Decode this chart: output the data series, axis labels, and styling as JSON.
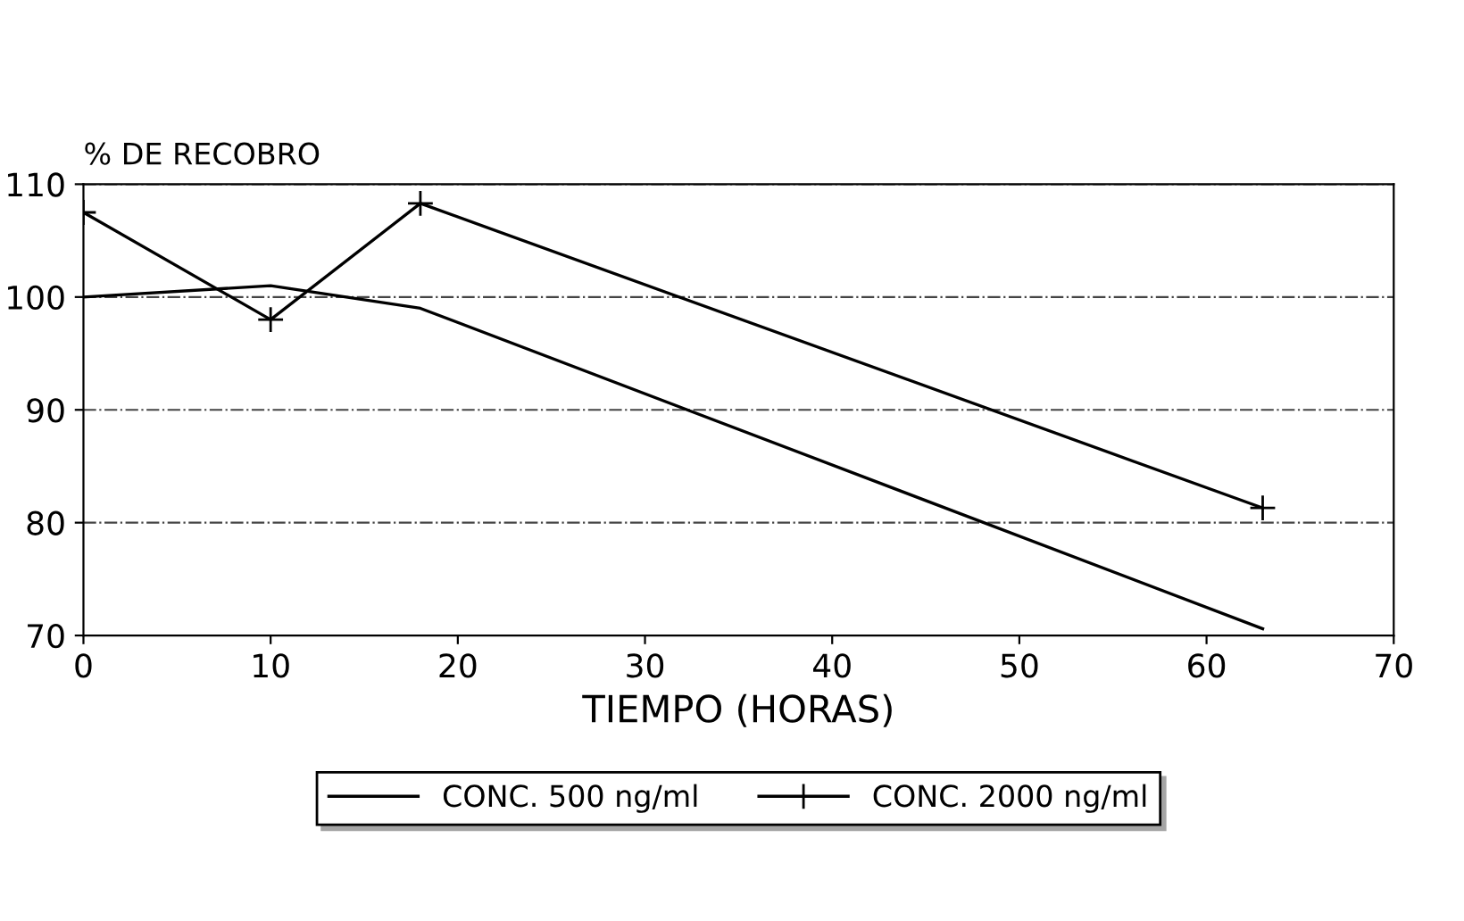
{
  "chart_data": {
    "type": "line",
    "ylabel": "% DE RECOBRO",
    "xlabel": "TIEMPO (HORAS)",
    "xlim": [
      0,
      70
    ],
    "xticks": [
      0,
      10,
      20,
      30,
      40,
      50,
      60,
      70
    ],
    "ylim": [
      70,
      110
    ],
    "yticks": [
      70,
      80,
      90,
      100,
      110
    ],
    "grid": "y",
    "legend": "bottom",
    "series": [
      {
        "name": "CONC. 500 ng/ml",
        "color": "#000000",
        "marker": "none",
        "x": [
          0,
          10,
          18,
          63
        ],
        "values": [
          100,
          101,
          99,
          70.6
        ]
      },
      {
        "name": "CONC. 2000 ng/ml",
        "color": "#000000",
        "marker": "cross",
        "x": [
          0,
          10,
          18,
          63
        ],
        "values": [
          107.5,
          98,
          108.3,
          81.3
        ]
      }
    ]
  }
}
